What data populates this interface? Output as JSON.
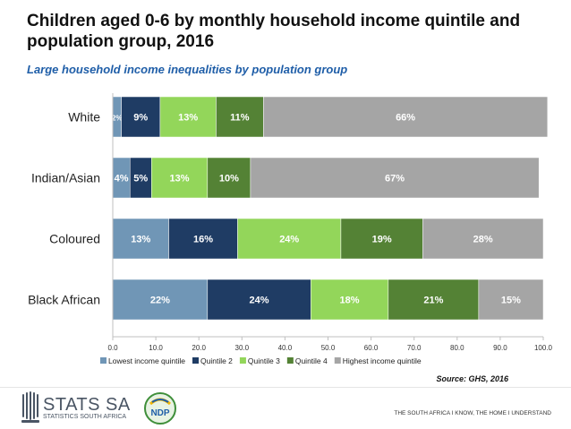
{
  "header": {
    "title": "Children aged 0-6 by monthly household income quintile and population group, 2016",
    "subtitle": "Large household income inequalities by population group"
  },
  "chart_data": {
    "type": "bar",
    "orientation": "horizontal",
    "stacked": true,
    "categories": [
      "White",
      "Indian/Asian",
      "Coloured",
      "Black African"
    ],
    "series": [
      {
        "name": "Lowest income quintile",
        "color": "#7096b6",
        "values": [
          2,
          4,
          13,
          22
        ],
        "labels": [
          "2%",
          "4%",
          "13%",
          "22%"
        ]
      },
      {
        "name": "Quintile 2",
        "color": "#1f3c64",
        "values": [
          9,
          5,
          16,
          24
        ],
        "labels": [
          "9%",
          "5%",
          "16%",
          "24%"
        ]
      },
      {
        "name": "Quintile 3",
        "color": "#93d65a",
        "values": [
          13,
          13,
          24,
          18
        ],
        "labels": [
          "13%",
          "13%",
          "24%",
          "18%"
        ]
      },
      {
        "name": "Quintile 4",
        "color": "#548235",
        "values": [
          11,
          10,
          19,
          21
        ],
        "labels": [
          "11%",
          "10%",
          "19%",
          "21%"
        ]
      },
      {
        "name": "Highest income quintile",
        "color": "#a5a5a5",
        "values": [
          66,
          67,
          28,
          15
        ],
        "labels": [
          "66%",
          "67%",
          "28%",
          "15%"
        ]
      }
    ],
    "xlim": [
      0,
      100
    ],
    "xticks": [
      "0.0",
      "10.0",
      "20.0",
      "30.0",
      "40.0",
      "50.0",
      "60.0",
      "70.0",
      "80.0",
      "90.0",
      "100.0"
    ],
    "grid": false,
    "legend_position": "bottom"
  },
  "source": "Source: GHS, 2016",
  "footer": {
    "org_name": "STATS SA",
    "org_sub": "STATISTICS SOUTH AFRICA",
    "ndp_badge": "NDP",
    "tagline": "THE SOUTH AFRICA I KNOW, THE HOME I UNDERSTAND"
  }
}
